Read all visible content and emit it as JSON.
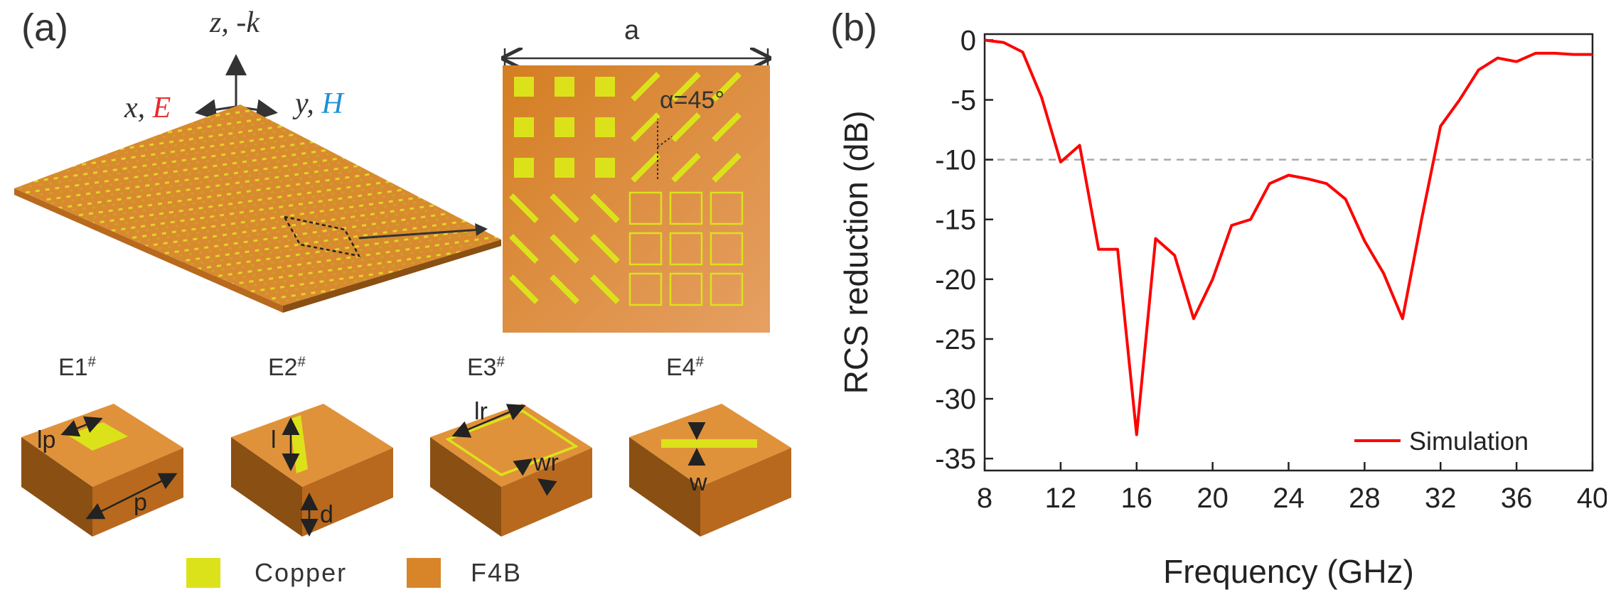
{
  "panel_a": {
    "label": "(a)",
    "axes": {
      "z_label": "z, -k",
      "x_prefix": "x, ",
      "x_field": "E",
      "y_prefix": "y, ",
      "y_field": "H"
    },
    "supercell": {
      "width_label": "a",
      "angle_label": "α=45°"
    },
    "cells": [
      {
        "name": "E1",
        "mark": "#",
        "dims": [
          "lp",
          "p"
        ]
      },
      {
        "name": "E2",
        "mark": "#",
        "dims": [
          "l",
          "d"
        ]
      },
      {
        "name": "E3",
        "mark": "#",
        "dims": [
          "lr",
          "wr"
        ]
      },
      {
        "name": "E4",
        "mark": "#",
        "dims": [
          "w"
        ]
      }
    ],
    "legend": [
      {
        "label": "Copper",
        "color": "#dce21a"
      },
      {
        "label": "F4B",
        "color": "#d8852a"
      }
    ]
  },
  "panel_b": {
    "label": "(b)"
  },
  "colors": {
    "substrate": "#d8852a",
    "substrate_top": "#e0923a",
    "substrate_side_dark": "#8a4f12",
    "substrate_side_mid": "#b8691e",
    "copper": "#dce21a",
    "curve": "#ff0000",
    "field_e": "#e8282a",
    "field_h": "#1f8fd6"
  },
  "chart_data": {
    "type": "line",
    "title": "",
    "xlabel": "Frequency (GHz)",
    "ylabel": "RCS reduction (dB)",
    "xlim": [
      8,
      40
    ],
    "ylim": [
      -36,
      0.5
    ],
    "xticks": [
      8,
      12,
      16,
      20,
      24,
      28,
      32,
      36,
      40
    ],
    "yticks": [
      0,
      -5,
      -10,
      -15,
      -20,
      -25,
      -30,
      -35
    ],
    "reference_line": {
      "y": -10,
      "style": "dashed",
      "color": "#aaaaaa"
    },
    "series": [
      {
        "name": "Simulation",
        "color": "#ff0000",
        "x": [
          8,
          9,
          10,
          11,
          12,
          13,
          14,
          15,
          16,
          17,
          18,
          19,
          20,
          21,
          22,
          23,
          24,
          25,
          26,
          27,
          28,
          29,
          30,
          31,
          32,
          33,
          34,
          35,
          36,
          37,
          38,
          39,
          40
        ],
        "y": [
          0,
          -0.2,
          -1.0,
          -4.8,
          -10.2,
          -8.8,
          -17.5,
          -17.5,
          -33.0,
          -16.6,
          -18.0,
          -23.3,
          -20.0,
          -15.5,
          -15.0,
          -12.0,
          -11.3,
          -11.6,
          -12.0,
          -13.3,
          -16.8,
          -19.5,
          -23.3,
          -15.0,
          -7.2,
          -5.0,
          -2.5,
          -1.5,
          -1.8,
          -1.1,
          -1.1,
          -1.2,
          -1.2
        ]
      }
    ],
    "legend_position": "bottom-right"
  }
}
